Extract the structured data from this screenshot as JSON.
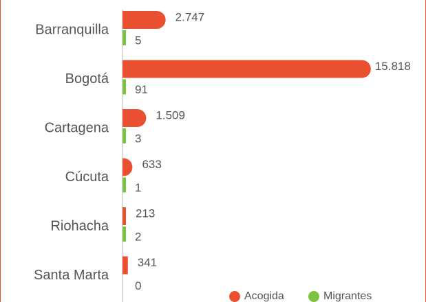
{
  "chart_data": {
    "type": "bar",
    "orientation": "horizontal",
    "categories": [
      "Barranquilla",
      "Bogotá",
      "Cartagena",
      "Cúcuta",
      "Riohacha",
      "Santa Marta"
    ],
    "series": [
      {
        "name": "Acogida",
        "color": "#e9502f",
        "values": [
          2747,
          15818,
          1509,
          633,
          213,
          341
        ],
        "value_labels": [
          "2.747",
          "15.818",
          "1.509",
          "633",
          "213",
          "341"
        ]
      },
      {
        "name": "Migrantes",
        "color": "#7cc242",
        "values": [
          5,
          91,
          3,
          1,
          2,
          0
        ],
        "value_labels": [
          "5",
          "91",
          "3",
          "1",
          "2",
          "0"
        ]
      }
    ],
    "xlim": [
      0,
      16000
    ],
    "legend": "bottom-right"
  }
}
